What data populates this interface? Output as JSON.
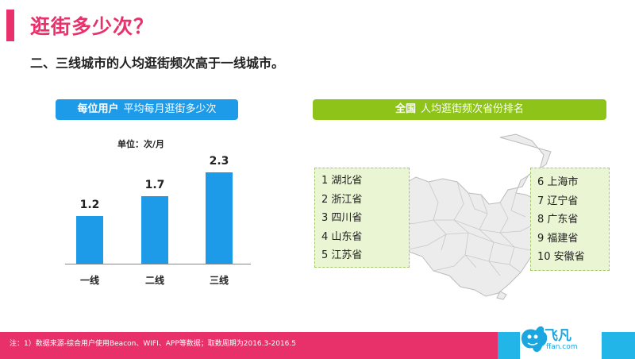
{
  "slide": {
    "title": "逛街多少次？",
    "subtitle": "二、三线城市的人均逛街频次高于一线城市。"
  },
  "left_panel": {
    "label_strong": "每位用户",
    "label_rest": "平均每月逛街多少次",
    "unit": "单位：次/月"
  },
  "chart_data": {
    "type": "bar",
    "categories": [
      "一线",
      "二线",
      "三线"
    ],
    "values": [
      1.2,
      1.7,
      2.3
    ],
    "value_labels": [
      "1.2",
      "1.7",
      "2.3"
    ],
    "ylim": [
      0,
      2.6
    ],
    "color": "#1e9be8",
    "grid": false
  },
  "right_panel": {
    "label_strong": "全国",
    "label_rest": "人均逛街频次省份排名",
    "ranking_left": [
      "1 湖北省",
      "2 浙江省",
      "3 四川省",
      "4 山东省",
      "5 江苏省"
    ],
    "ranking_right": [
      "6 上海市",
      "7 辽宁省",
      "8 广东省",
      "9  福建省",
      "10 安徽省"
    ]
  },
  "footer": {
    "note": "注：1）数据来源-综合用户使用Beacon、WIFI、APP等数据；取数周期为2016.3-2016.5",
    "logo_text": "飞凡",
    "logo_url": "ffan.com"
  },
  "colors": {
    "accent_pink": "#e8306a",
    "bar_blue": "#1e9be8",
    "pill_green": "#8ec41a",
    "rank_bg": "#eaf5d4",
    "logo_blue": "#1aa7df"
  }
}
